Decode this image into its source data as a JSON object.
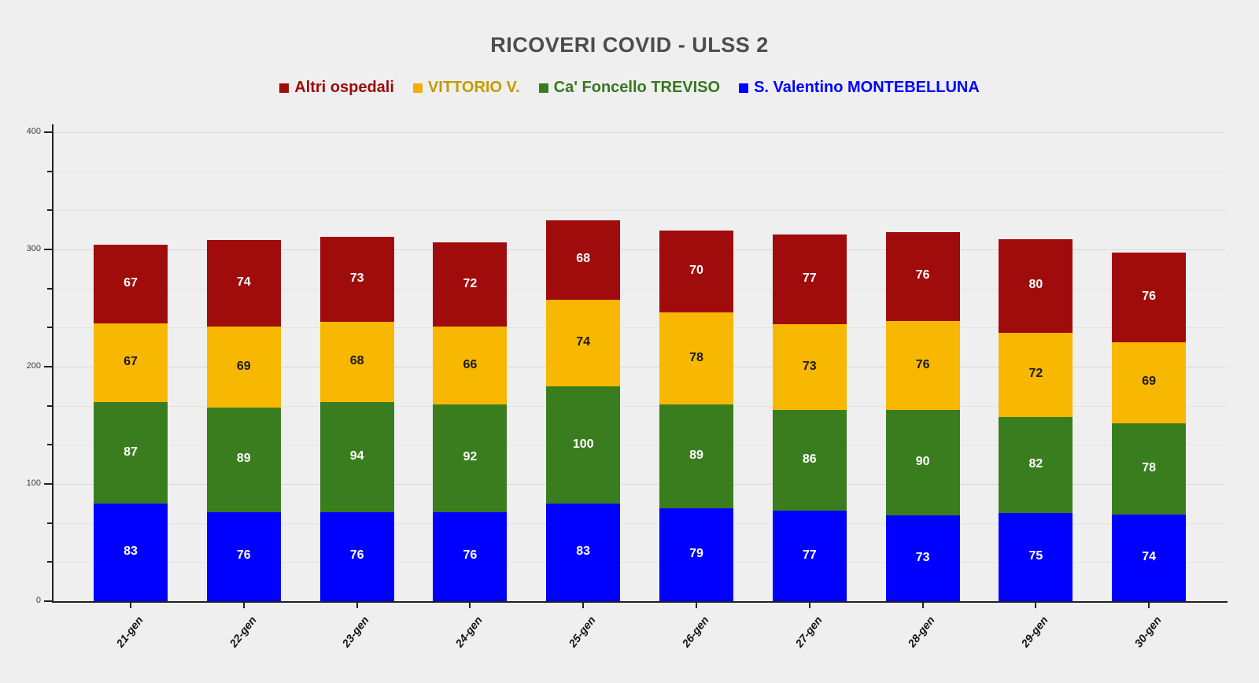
{
  "page": {
    "background": "#efefef"
  },
  "title": {
    "text": "RICOVERI COVID - ULSS 2",
    "color": "#4c4c4c"
  },
  "legend": {
    "position": "top",
    "items": [
      {
        "label": "Altri ospedali",
        "swatch_color": "#a00c0c",
        "text_color": "#9b0b0b"
      },
      {
        "label": "VITTORIO V.",
        "swatch_color": "#f5ae00",
        "text_color": "#c49a02"
      },
      {
        "label": "Ca' Foncello TREVISO",
        "swatch_color": "#3a7d1e",
        "text_color": "#38761d"
      },
      {
        "label": "S. Valentino MONTEBELLUNA",
        "swatch_color": "#0000ff",
        "text_color": "#0000ff"
      }
    ]
  },
  "chart_data": {
    "type": "bar",
    "stacked": true,
    "title": "RICOVERI COVID - ULSS 2",
    "xlabel": "",
    "ylabel": "",
    "categories": [
      "21-gen",
      "22-gen",
      "23-gen",
      "24-gen",
      "25-gen",
      "26-gen",
      "27-gen",
      "28-gen",
      "29-gen",
      "30-gen"
    ],
    "series": [
      {
        "name": "S. Valentino MONTEBELLUNA",
        "color": "#0000ff",
        "label_color": "#ffffff",
        "values": [
          83,
          76,
          76,
          76,
          83,
          79,
          77,
          73,
          75,
          74
        ]
      },
      {
        "name": "Ca' Foncello TREVISO",
        "color": "#3a7d1e",
        "label_color": "#ffffff",
        "values": [
          87,
          89,
          94,
          92,
          100,
          89,
          86,
          90,
          82,
          78
        ]
      },
      {
        "name": "VITTORIO V.",
        "color": "#f8b700",
        "label_color": "#1a1a1a",
        "values": [
          67,
          69,
          68,
          66,
          74,
          78,
          73,
          76,
          72,
          69
        ]
      },
      {
        "name": "Altri ospedali",
        "color": "#a00c0c",
        "label_color": "#ffffff",
        "values": [
          67,
          74,
          73,
          72,
          68,
          70,
          77,
          76,
          80,
          76
        ]
      }
    ],
    "totals": [
      304,
      308,
      311,
      306,
      325,
      316,
      313,
      315,
      309,
      297
    ],
    "ylim": [
      0,
      400
    ],
    "y_major_ticks": [
      0,
      100,
      200,
      300,
      400
    ],
    "y_minor_divisions": 3,
    "grid": true,
    "legend_position": "top",
    "x_tick_label_rotation_deg": -52
  }
}
